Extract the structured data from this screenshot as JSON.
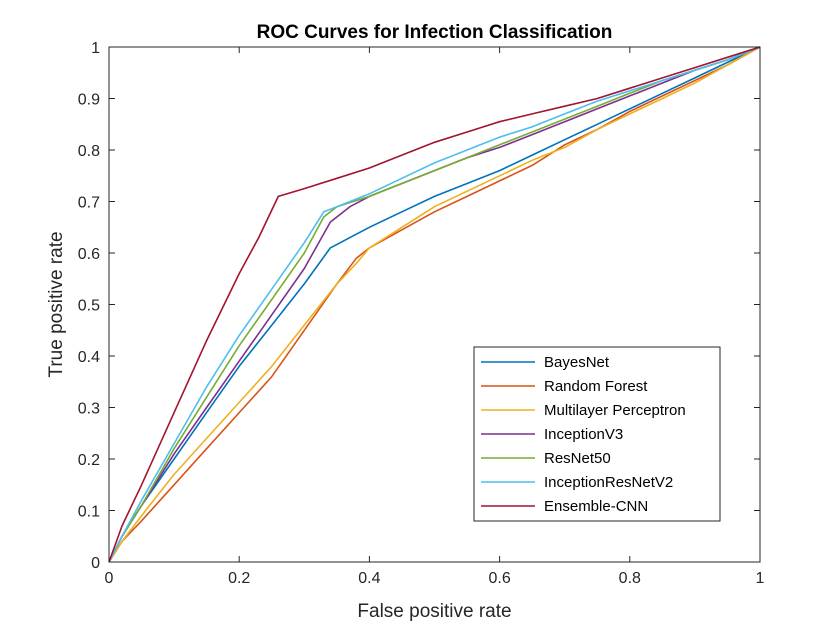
{
  "chart_data": {
    "type": "line",
    "title": "ROC Curves for Infection Classification",
    "xlabel": "False positive rate",
    "ylabel": "True positive rate",
    "xlim": [
      0,
      1
    ],
    "ylim": [
      0,
      1
    ],
    "xticks": [
      0,
      0.2,
      0.4,
      0.6,
      0.8,
      1
    ],
    "xtick_labels": [
      "0",
      "0.2",
      "0.4",
      "0.6",
      "0.8",
      "1"
    ],
    "yticks": [
      0,
      0.1,
      0.2,
      0.3,
      0.4,
      0.5,
      0.6,
      0.7,
      0.8,
      0.9,
      1
    ],
    "ytick_labels": [
      "0",
      "0.1",
      "0.2",
      "0.3",
      "0.4",
      "0.5",
      "0.6",
      "0.7",
      "0.8",
      "0.9",
      "1"
    ],
    "grid": false,
    "legend_position": "lower-right",
    "series": [
      {
        "name": "BayesNet",
        "color": "#0072BD",
        "x": [
          0,
          0.02,
          0.05,
          0.1,
          0.15,
          0.2,
          0.25,
          0.3,
          0.34,
          0.37,
          0.4,
          0.45,
          0.5,
          0.55,
          0.6,
          0.65,
          0.7,
          0.75,
          0.8,
          0.85,
          0.9,
          0.95,
          1
        ],
        "y": [
          0,
          0.05,
          0.11,
          0.2,
          0.29,
          0.38,
          0.46,
          0.54,
          0.61,
          0.63,
          0.65,
          0.68,
          0.71,
          0.735,
          0.76,
          0.79,
          0.82,
          0.85,
          0.88,
          0.91,
          0.94,
          0.97,
          1
        ]
      },
      {
        "name": "Random Forest",
        "color": "#D95319",
        "x": [
          0,
          0.02,
          0.05,
          0.1,
          0.15,
          0.2,
          0.25,
          0.3,
          0.35,
          0.38,
          0.4,
          0.45,
          0.5,
          0.55,
          0.6,
          0.65,
          0.7,
          0.75,
          0.8,
          0.85,
          0.9,
          0.95,
          1
        ],
        "y": [
          0,
          0.04,
          0.08,
          0.15,
          0.22,
          0.29,
          0.36,
          0.45,
          0.54,
          0.59,
          0.61,
          0.645,
          0.68,
          0.71,
          0.74,
          0.77,
          0.81,
          0.84,
          0.875,
          0.905,
          0.935,
          0.965,
          1
        ]
      },
      {
        "name": "Multilayer Perceptron",
        "color": "#EDB120",
        "x": [
          0,
          0.02,
          0.05,
          0.1,
          0.15,
          0.2,
          0.25,
          0.3,
          0.35,
          0.38,
          0.4,
          0.45,
          0.5,
          0.55,
          0.6,
          0.65,
          0.7,
          0.75,
          0.8,
          0.85,
          0.9,
          0.95,
          1
        ],
        "y": [
          0,
          0.04,
          0.09,
          0.17,
          0.24,
          0.31,
          0.38,
          0.46,
          0.54,
          0.58,
          0.61,
          0.65,
          0.69,
          0.72,
          0.75,
          0.78,
          0.805,
          0.84,
          0.87,
          0.9,
          0.93,
          0.965,
          1
        ]
      },
      {
        "name": "InceptionV3",
        "color": "#7E2F8E",
        "x": [
          0,
          0.02,
          0.05,
          0.1,
          0.15,
          0.2,
          0.25,
          0.3,
          0.34,
          0.37,
          0.4,
          0.45,
          0.5,
          0.55,
          0.6,
          0.65,
          0.7,
          0.75,
          0.8,
          0.85,
          0.9,
          0.95,
          1
        ],
        "y": [
          0,
          0.05,
          0.11,
          0.21,
          0.3,
          0.39,
          0.48,
          0.57,
          0.66,
          0.69,
          0.71,
          0.735,
          0.76,
          0.785,
          0.805,
          0.83,
          0.855,
          0.88,
          0.905,
          0.93,
          0.955,
          0.975,
          1
        ]
      },
      {
        "name": "ResNet50",
        "color": "#77AC30",
        "x": [
          0,
          0.02,
          0.05,
          0.1,
          0.15,
          0.2,
          0.25,
          0.3,
          0.33,
          0.35,
          0.4,
          0.45,
          0.5,
          0.55,
          0.6,
          0.65,
          0.7,
          0.75,
          0.8,
          0.85,
          0.9,
          0.95,
          1
        ],
        "y": [
          0,
          0.05,
          0.11,
          0.22,
          0.32,
          0.42,
          0.51,
          0.6,
          0.67,
          0.69,
          0.71,
          0.735,
          0.76,
          0.785,
          0.81,
          0.835,
          0.86,
          0.885,
          0.91,
          0.935,
          0.955,
          0.975,
          1
        ]
      },
      {
        "name": "InceptionResNetV2",
        "color": "#4DBEEE",
        "x": [
          0,
          0.02,
          0.05,
          0.1,
          0.15,
          0.2,
          0.25,
          0.3,
          0.33,
          0.35,
          0.4,
          0.45,
          0.5,
          0.55,
          0.6,
          0.65,
          0.7,
          0.75,
          0.8,
          0.85,
          0.9,
          0.95,
          1
        ],
        "y": [
          0,
          0.05,
          0.12,
          0.23,
          0.34,
          0.44,
          0.53,
          0.62,
          0.68,
          0.69,
          0.715,
          0.745,
          0.775,
          0.8,
          0.825,
          0.845,
          0.87,
          0.895,
          0.915,
          0.935,
          0.955,
          0.975,
          1
        ]
      },
      {
        "name": "Ensemble-CNN",
        "color": "#A2142F",
        "x": [
          0,
          0.02,
          0.05,
          0.1,
          0.15,
          0.2,
          0.23,
          0.26,
          0.3,
          0.35,
          0.4,
          0.45,
          0.5,
          0.55,
          0.6,
          0.65,
          0.7,
          0.75,
          0.8,
          0.85,
          0.9,
          0.95,
          1
        ],
        "y": [
          0,
          0.07,
          0.15,
          0.29,
          0.43,
          0.56,
          0.63,
          0.71,
          0.725,
          0.745,
          0.765,
          0.79,
          0.815,
          0.835,
          0.855,
          0.87,
          0.885,
          0.9,
          0.92,
          0.94,
          0.96,
          0.98,
          1
        ]
      }
    ]
  }
}
